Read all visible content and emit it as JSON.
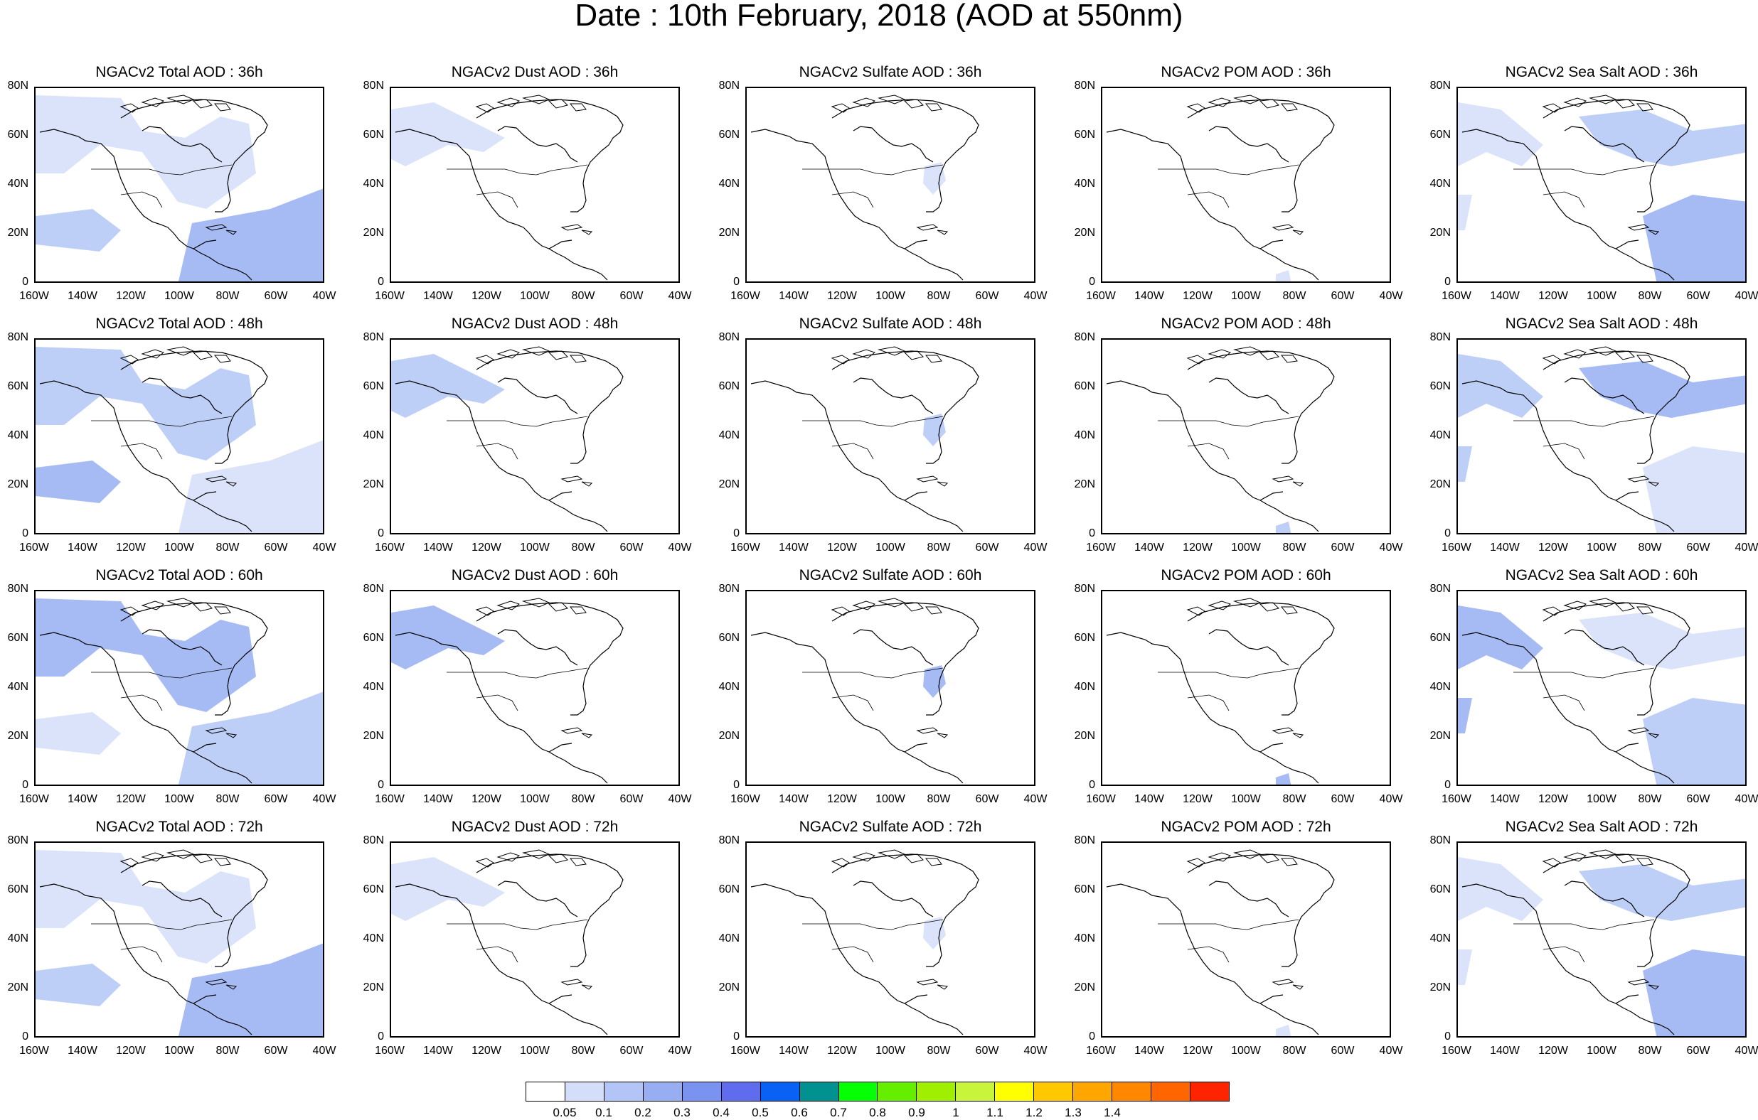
{
  "title": "Date : 10th February, 2018 (AOD at 550nm)",
  "lat_ticks": [
    "80N",
    "60N",
    "40N",
    "20N",
    "0"
  ],
  "lon_ticks": [
    "160W",
    "140W",
    "120W",
    "100W",
    "80W",
    "60W",
    "40W"
  ],
  "fill_colors": {
    "level1": "#d3def9",
    "level2": "#b2c5f6",
    "level3": "#97aef2"
  },
  "panels": [
    [
      "NGACv2 Total AOD : 36h",
      "NGACv2 Dust AOD : 36h",
      "NGACv2 Sulfate AOD : 36h",
      "NGACv2 POM AOD : 36h",
      "NGACv2 Sea Salt AOD : 36h"
    ],
    [
      "NGACv2 Total AOD : 48h",
      "NGACv2 Dust AOD : 48h",
      "NGACv2 Sulfate AOD : 48h",
      "NGACv2 POM AOD : 48h",
      "NGACv2 Sea Salt AOD : 48h"
    ],
    [
      "NGACv2 Total AOD : 60h",
      "NGACv2 Dust AOD : 60h",
      "NGACv2 Sulfate AOD : 60h",
      "NGACv2 POM AOD : 60h",
      "NGACv2 Sea Salt AOD : 60h"
    ],
    [
      "NGACv2 Total AOD : 72h",
      "NGACv2 Dust AOD : 72h",
      "NGACv2 Sulfate AOD : 72h",
      "NGACv2 POM AOD : 72h",
      "NGACv2 Sea Salt  AOD : 72h"
    ]
  ],
  "colorbar": {
    "colors": [
      "#ffffff",
      "#d3def9",
      "#b2c5f6",
      "#97aef2",
      "#7b93f0",
      "#5f6cee",
      "#0a62f5",
      "#019191",
      "#05ff05",
      "#66ee00",
      "#a0ef00",
      "#c8f53c",
      "#ffff00",
      "#ffc800",
      "#ffa600",
      "#ff8800",
      "#ff6500",
      "#ff2400"
    ],
    "labels": [
      "0.05",
      "0.1",
      "0.2",
      "0.3",
      "0.4",
      "0.5",
      "0.6",
      "0.7",
      "0.8",
      "0.9",
      "1",
      "1.1",
      "1.2",
      "1.3",
      "1.4"
    ]
  }
}
